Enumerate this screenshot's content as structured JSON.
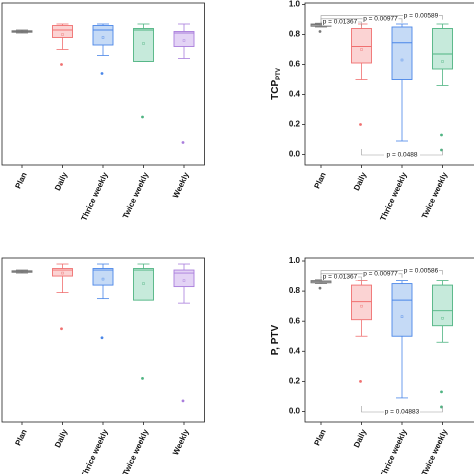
{
  "chart_data": [
    {
      "type": "box",
      "ylim": [
        -0.07,
        1.01
      ],
      "categories": [
        "Plan",
        "Daily",
        "Thrice weekly",
        "Twice weekly",
        "Weekly"
      ],
      "colors": [
        "#777777",
        "#f07070",
        "#4a86e8",
        "#4fb482",
        "#a97ddc"
      ],
      "fills": [
        "#bbbbbb",
        "#fbd3d3",
        "#c5daf6",
        "#c6eadb",
        "#e3d3f5"
      ],
      "boxes": [
        {
          "min": 0.81,
          "q1": 0.815,
          "median": 0.82,
          "q3": 0.825,
          "max": 0.83,
          "mean": 0.82,
          "outliers": []
        },
        {
          "min": 0.7,
          "q1": 0.78,
          "median": 0.83,
          "q3": 0.86,
          "max": 0.87,
          "mean": 0.8,
          "outliers": [
            0.6
          ]
        },
        {
          "min": 0.66,
          "q1": 0.73,
          "median": 0.83,
          "q3": 0.86,
          "max": 0.87,
          "mean": 0.78,
          "outliers": [
            0.54
          ]
        },
        {
          "min": 0.62,
          "q1": 0.62,
          "median": 0.83,
          "q3": 0.84,
          "max": 0.87,
          "mean": 0.74,
          "outliers": [
            0.25
          ]
        },
        {
          "min": 0.64,
          "q1": 0.72,
          "median": 0.81,
          "q3": 0.82,
          "max": 0.87,
          "mean": 0.76,
          "outliers": [
            0.08
          ]
        }
      ]
    },
    {
      "type": "box",
      "ylim": [
        -0.07,
        1.01
      ],
      "ylabel": "TCP",
      "ylabel_sub": "PTV",
      "yticks": [
        {
          "value": 0,
          "label": "0.0"
        },
        0.2,
        0.4,
        0.6,
        0.8,
        {
          "value": 1,
          "label": "1.0"
        }
      ],
      "categories": [
        "Plan",
        "Daily",
        "Thrice weekly",
        "Twice weekly"
      ],
      "colors": [
        "#777777",
        "#f07070",
        "#4a86e8",
        "#4fb482"
      ],
      "fills": [
        "#bbbbbb",
        "#fbd3d3",
        "#c5daf6",
        "#c6eadb"
      ],
      "boxes": [
        {
          "min": 0.85,
          "q1": 0.855,
          "median": 0.865,
          "q3": 0.87,
          "max": 0.875,
          "mean": 0.862,
          "outliers": [
            0.82
          ]
        },
        {
          "min": 0.5,
          "q1": 0.61,
          "median": 0.72,
          "q3": 0.84,
          "max": 0.87,
          "mean": 0.7,
          "outliers": [
            0.2
          ]
        },
        {
          "min": 0.09,
          "q1": 0.5,
          "median": 0.745,
          "q3": 0.85,
          "max": 0.87,
          "mean": 0.63,
          "outliers": []
        },
        {
          "min": 0.46,
          "q1": 0.57,
          "median": 0.67,
          "q3": 0.84,
          "max": 0.87,
          "mean": 0.62,
          "outliers": [
            0.13,
            0.03
          ]
        }
      ],
      "annotations": [
        "p = 0.01367",
        "p = 0.00977",
        "p = 0.00589",
        "p = 0.0488"
      ]
    },
    {
      "type": "box",
      "ylim": [
        -0.07,
        1.02
      ],
      "categories": [
        "Plan",
        "Daily",
        "Thrice weekly",
        "Twice weekly",
        "Weekly"
      ],
      "colors": [
        "#777777",
        "#f07070",
        "#4a86e8",
        "#4fb482",
        "#a97ddc"
      ],
      "fills": [
        "#bbbbbb",
        "#fbd3d3",
        "#c5daf6",
        "#c6eadb",
        "#e3d3f5"
      ],
      "boxes": [
        {
          "min": 0.92,
          "q1": 0.925,
          "median": 0.93,
          "q3": 0.935,
          "max": 0.94,
          "mean": 0.93,
          "outliers": []
        },
        {
          "min": 0.79,
          "q1": 0.9,
          "median": 0.94,
          "q3": 0.95,
          "max": 0.98,
          "mean": 0.92,
          "outliers": [
            0.55
          ]
        },
        {
          "min": 0.75,
          "q1": 0.84,
          "median": 0.94,
          "q3": 0.95,
          "max": 0.98,
          "mean": 0.88,
          "outliers": [
            0.49
          ]
        },
        {
          "min": 0.74,
          "q1": 0.74,
          "median": 0.94,
          "q3": 0.95,
          "max": 0.98,
          "mean": 0.85,
          "outliers": [
            0.22
          ]
        },
        {
          "min": 0.72,
          "q1": 0.83,
          "median": 0.92,
          "q3": 0.94,
          "max": 0.98,
          "mean": 0.87,
          "outliers": [
            0.07
          ]
        }
      ]
    },
    {
      "type": "box",
      "ylim": [
        -0.07,
        1.02
      ],
      "ylabel": "P, PTV",
      "yticks": [
        {
          "value": 0,
          "label": "0.0"
        },
        0.2,
        0.4,
        0.6,
        0.8,
        {
          "value": 1,
          "label": "1.0"
        }
      ],
      "categories": [
        "Plan",
        "Daily",
        "Thrice weekly",
        "Twice weekly"
      ],
      "colors": [
        "#777777",
        "#f07070",
        "#4a86e8",
        "#4fb482"
      ],
      "fills": [
        "#bbbbbb",
        "#fbd3d3",
        "#c5daf6",
        "#c6eadb"
      ],
      "boxes": [
        {
          "min": 0.85,
          "q1": 0.855,
          "median": 0.865,
          "q3": 0.87,
          "max": 0.875,
          "mean": 0.862,
          "outliers": [
            0.82
          ]
        },
        {
          "min": 0.5,
          "q1": 0.61,
          "median": 0.73,
          "q3": 0.84,
          "max": 0.87,
          "mean": 0.7,
          "outliers": [
            0.2
          ]
        },
        {
          "min": 0.09,
          "q1": 0.5,
          "median": 0.74,
          "q3": 0.85,
          "max": 0.87,
          "mean": 0.63,
          "outliers": []
        },
        {
          "min": 0.46,
          "q1": 0.57,
          "median": 0.67,
          "q3": 0.84,
          "max": 0.87,
          "mean": 0.62,
          "outliers": [
            0.13,
            0.03
          ]
        }
      ],
      "annotations": [
        "p = 0.01367",
        "p = 0.00977",
        "p = 0.00586",
        "p = 0.04883"
      ]
    }
  ]
}
